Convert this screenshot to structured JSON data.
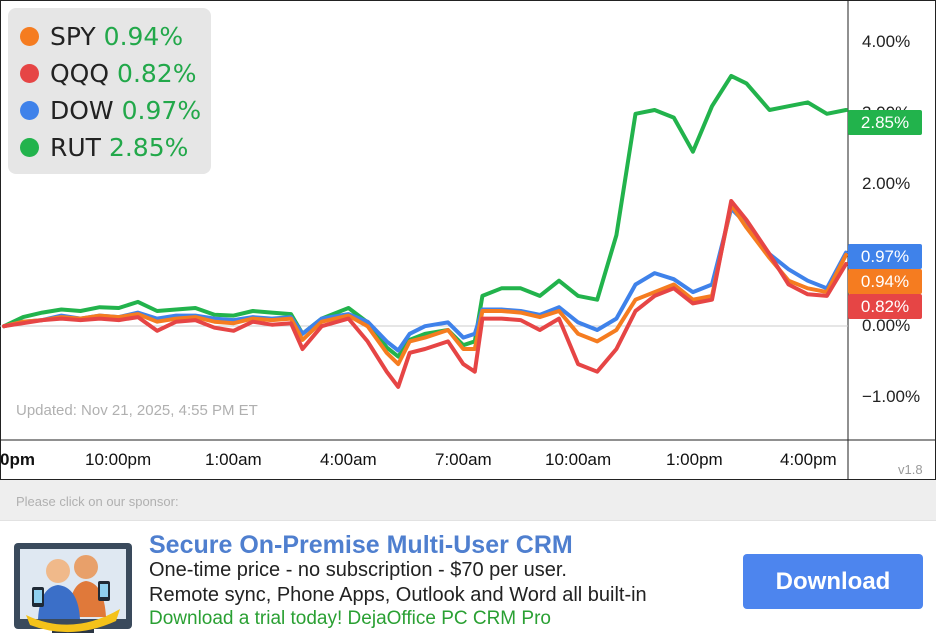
{
  "legend": {
    "items": [
      {
        "name": "SPY",
        "value": "0.94%",
        "color": "#f57c20"
      },
      {
        "name": "QQQ",
        "value": "0.82%",
        "color": "#e64545"
      },
      {
        "name": "DOW",
        "value": "0.97%",
        "color": "#3f82ea"
      },
      {
        "name": "RUT",
        "value": "2.85%",
        "color": "#22b34c"
      }
    ]
  },
  "updated_text": "Updated: Nov 21, 2025, 4:55 PM ET",
  "version": "v1.8",
  "chart_data": {
    "type": "line",
    "x_tick_labels": [
      "0pm",
      "10:00pm",
      "1:00am",
      "4:00am",
      "7:00am",
      "10:00am",
      "1:00pm",
      "4:00pm"
    ],
    "y_tick_labels": [
      "4.00%",
      "3.00%",
      "2.00%",
      "0.00%",
      "−1.00%"
    ],
    "ylim": [
      -1.5,
      4.3
    ],
    "y_ticks": [
      4,
      3,
      2,
      0,
      -1
    ],
    "x_ticks": [
      0,
      3,
      6,
      9,
      12,
      15,
      18,
      21
    ],
    "xlim": [
      0,
      22
    ],
    "series": [
      {
        "name": "SPY",
        "color": "#f57c20",
        "last_label": "0.94%",
        "points": [
          [
            0,
            0.0
          ],
          [
            0.5,
            0.06
          ],
          [
            1,
            0.08
          ],
          [
            1.5,
            0.12
          ],
          [
            2,
            0.1
          ],
          [
            2.5,
            0.14
          ],
          [
            3,
            0.12
          ],
          [
            3.5,
            0.16
          ],
          [
            4,
            0.06
          ],
          [
            4.5,
            0.1
          ],
          [
            5,
            0.12
          ],
          [
            5.5,
            0.06
          ],
          [
            6,
            0.04
          ],
          [
            6.5,
            0.1
          ],
          [
            7,
            0.08
          ],
          [
            7.5,
            0.1
          ],
          [
            7.8,
            -0.18
          ],
          [
            8.3,
            0.06
          ],
          [
            9,
            0.14
          ],
          [
            9.5,
            0.0
          ],
          [
            10,
            -0.35
          ],
          [
            10.3,
            -0.5
          ],
          [
            10.6,
            -0.2
          ],
          [
            11,
            -0.15
          ],
          [
            11.6,
            -0.05
          ],
          [
            12,
            -0.3
          ],
          [
            12.3,
            -0.3
          ],
          [
            12.5,
            0.2
          ],
          [
            13,
            0.2
          ],
          [
            13.5,
            0.18
          ],
          [
            14,
            0.12
          ],
          [
            14.5,
            0.2
          ],
          [
            15,
            -0.1
          ],
          [
            15.5,
            -0.2
          ],
          [
            16,
            -0.05
          ],
          [
            16.5,
            0.35
          ],
          [
            17,
            0.45
          ],
          [
            17.5,
            0.55
          ],
          [
            18,
            0.35
          ],
          [
            18.5,
            0.4
          ],
          [
            19,
            1.6
          ],
          [
            19.4,
            1.3
          ],
          [
            20,
            0.9
          ],
          [
            20.5,
            0.6
          ],
          [
            21,
            0.5
          ],
          [
            21.5,
            0.45
          ],
          [
            22,
            0.94
          ]
        ]
      },
      {
        "name": "QQQ",
        "color": "#e64545",
        "last_label": "0.82%",
        "points": [
          [
            0,
            0.0
          ],
          [
            0.5,
            0.04
          ],
          [
            1,
            0.08
          ],
          [
            1.5,
            0.1
          ],
          [
            2,
            0.08
          ],
          [
            2.5,
            0.1
          ],
          [
            3,
            0.08
          ],
          [
            3.5,
            0.12
          ],
          [
            4,
            -0.06
          ],
          [
            4.5,
            0.06
          ],
          [
            5,
            0.08
          ],
          [
            5.5,
            -0.02
          ],
          [
            6,
            -0.06
          ],
          [
            6.5,
            0.06
          ],
          [
            7,
            0.02
          ],
          [
            7.5,
            0.04
          ],
          [
            7.8,
            -0.3
          ],
          [
            8.3,
            0.0
          ],
          [
            9,
            0.1
          ],
          [
            9.5,
            -0.2
          ],
          [
            10,
            -0.6
          ],
          [
            10.3,
            -0.8
          ],
          [
            10.6,
            -0.35
          ],
          [
            11,
            -0.3
          ],
          [
            11.6,
            -0.2
          ],
          [
            12,
            -0.5
          ],
          [
            12.3,
            -0.6
          ],
          [
            12.5,
            0.1
          ],
          [
            13,
            0.1
          ],
          [
            13.5,
            0.08
          ],
          [
            14,
            -0.05
          ],
          [
            14.5,
            0.1
          ],
          [
            15,
            -0.5
          ],
          [
            15.5,
            -0.6
          ],
          [
            16,
            -0.3
          ],
          [
            16.5,
            0.2
          ],
          [
            17,
            0.4
          ],
          [
            17.5,
            0.5
          ],
          [
            18,
            0.3
          ],
          [
            18.5,
            0.35
          ],
          [
            19,
            1.65
          ],
          [
            19.4,
            1.4
          ],
          [
            20,
            0.95
          ],
          [
            20.5,
            0.55
          ],
          [
            21,
            0.42
          ],
          [
            21.5,
            0.4
          ],
          [
            22,
            0.82
          ]
        ]
      },
      {
        "name": "DOW",
        "color": "#3f82ea",
        "last_label": "0.97%",
        "points": [
          [
            0,
            0.0
          ],
          [
            0.5,
            0.06
          ],
          [
            1,
            0.08
          ],
          [
            1.5,
            0.14
          ],
          [
            2,
            0.1
          ],
          [
            2.5,
            0.14
          ],
          [
            3,
            0.12
          ],
          [
            3.5,
            0.18
          ],
          [
            4,
            0.1
          ],
          [
            4.5,
            0.14
          ],
          [
            5,
            0.14
          ],
          [
            5.5,
            0.1
          ],
          [
            6,
            0.08
          ],
          [
            6.5,
            0.12
          ],
          [
            7,
            0.1
          ],
          [
            7.5,
            0.12
          ],
          [
            7.8,
            -0.1
          ],
          [
            8.3,
            0.1
          ],
          [
            9,
            0.16
          ],
          [
            9.5,
            0.06
          ],
          [
            10,
            -0.2
          ],
          [
            10.3,
            -0.32
          ],
          [
            10.6,
            -0.1
          ],
          [
            11,
            0.0
          ],
          [
            11.6,
            0.05
          ],
          [
            12,
            -0.15
          ],
          [
            12.3,
            -0.1
          ],
          [
            12.5,
            0.22
          ],
          [
            13,
            0.22
          ],
          [
            13.5,
            0.2
          ],
          [
            14,
            0.15
          ],
          [
            14.5,
            0.25
          ],
          [
            15,
            0.05
          ],
          [
            15.5,
            -0.05
          ],
          [
            16,
            0.1
          ],
          [
            16.5,
            0.55
          ],
          [
            17,
            0.7
          ],
          [
            17.5,
            0.62
          ],
          [
            18,
            0.45
          ],
          [
            18.5,
            0.55
          ],
          [
            19,
            1.55
          ],
          [
            19.4,
            1.35
          ],
          [
            20,
            0.95
          ],
          [
            20.5,
            0.75
          ],
          [
            21,
            0.6
          ],
          [
            21.5,
            0.5
          ],
          [
            22,
            0.97
          ]
        ]
      },
      {
        "name": "RUT",
        "color": "#22b34c",
        "last_label": "2.85%",
        "points": [
          [
            0,
            0.0
          ],
          [
            0.5,
            0.12
          ],
          [
            1,
            0.18
          ],
          [
            1.5,
            0.22
          ],
          [
            2,
            0.2
          ],
          [
            2.5,
            0.25
          ],
          [
            3,
            0.24
          ],
          [
            3.5,
            0.32
          ],
          [
            4,
            0.2
          ],
          [
            4.5,
            0.22
          ],
          [
            5,
            0.24
          ],
          [
            5.5,
            0.15
          ],
          [
            6,
            0.14
          ],
          [
            6.5,
            0.2
          ],
          [
            7,
            0.18
          ],
          [
            7.5,
            0.16
          ],
          [
            7.8,
            -0.1
          ],
          [
            8.3,
            0.1
          ],
          [
            9,
            0.24
          ],
          [
            9.5,
            0.05
          ],
          [
            10,
            -0.28
          ],
          [
            10.3,
            -0.4
          ],
          [
            10.6,
            -0.18
          ],
          [
            11,
            -0.1
          ],
          [
            11.6,
            -0.05
          ],
          [
            12,
            -0.25
          ],
          [
            12.3,
            -0.2
          ],
          [
            12.5,
            0.4
          ],
          [
            13,
            0.5
          ],
          [
            13.5,
            0.5
          ],
          [
            14,
            0.4
          ],
          [
            14.5,
            0.6
          ],
          [
            15,
            0.4
          ],
          [
            15.5,
            0.35
          ],
          [
            16,
            1.2
          ],
          [
            16.5,
            2.8
          ],
          [
            17,
            2.85
          ],
          [
            17.5,
            2.75
          ],
          [
            18,
            2.3
          ],
          [
            18.5,
            2.9
          ],
          [
            19,
            3.3
          ],
          [
            19.4,
            3.2
          ],
          [
            20,
            2.85
          ],
          [
            20.5,
            2.9
          ],
          [
            21,
            2.95
          ],
          [
            21.5,
            2.8
          ],
          [
            22,
            2.85
          ]
        ]
      }
    ]
  },
  "sponsor": {
    "label": "Please click on our sponsor:",
    "title": "Secure On-Premise Multi-User CRM",
    "line1": "One-time price - no subscription - $70 per user.",
    "line2": "Remote sync, Phone Apps, Outlook and Word all built-in",
    "cta": "Download a trial today! DejaOffice PC CRM Pro",
    "button": "Download",
    "image_icon": "crm-users-phones-icon"
  }
}
